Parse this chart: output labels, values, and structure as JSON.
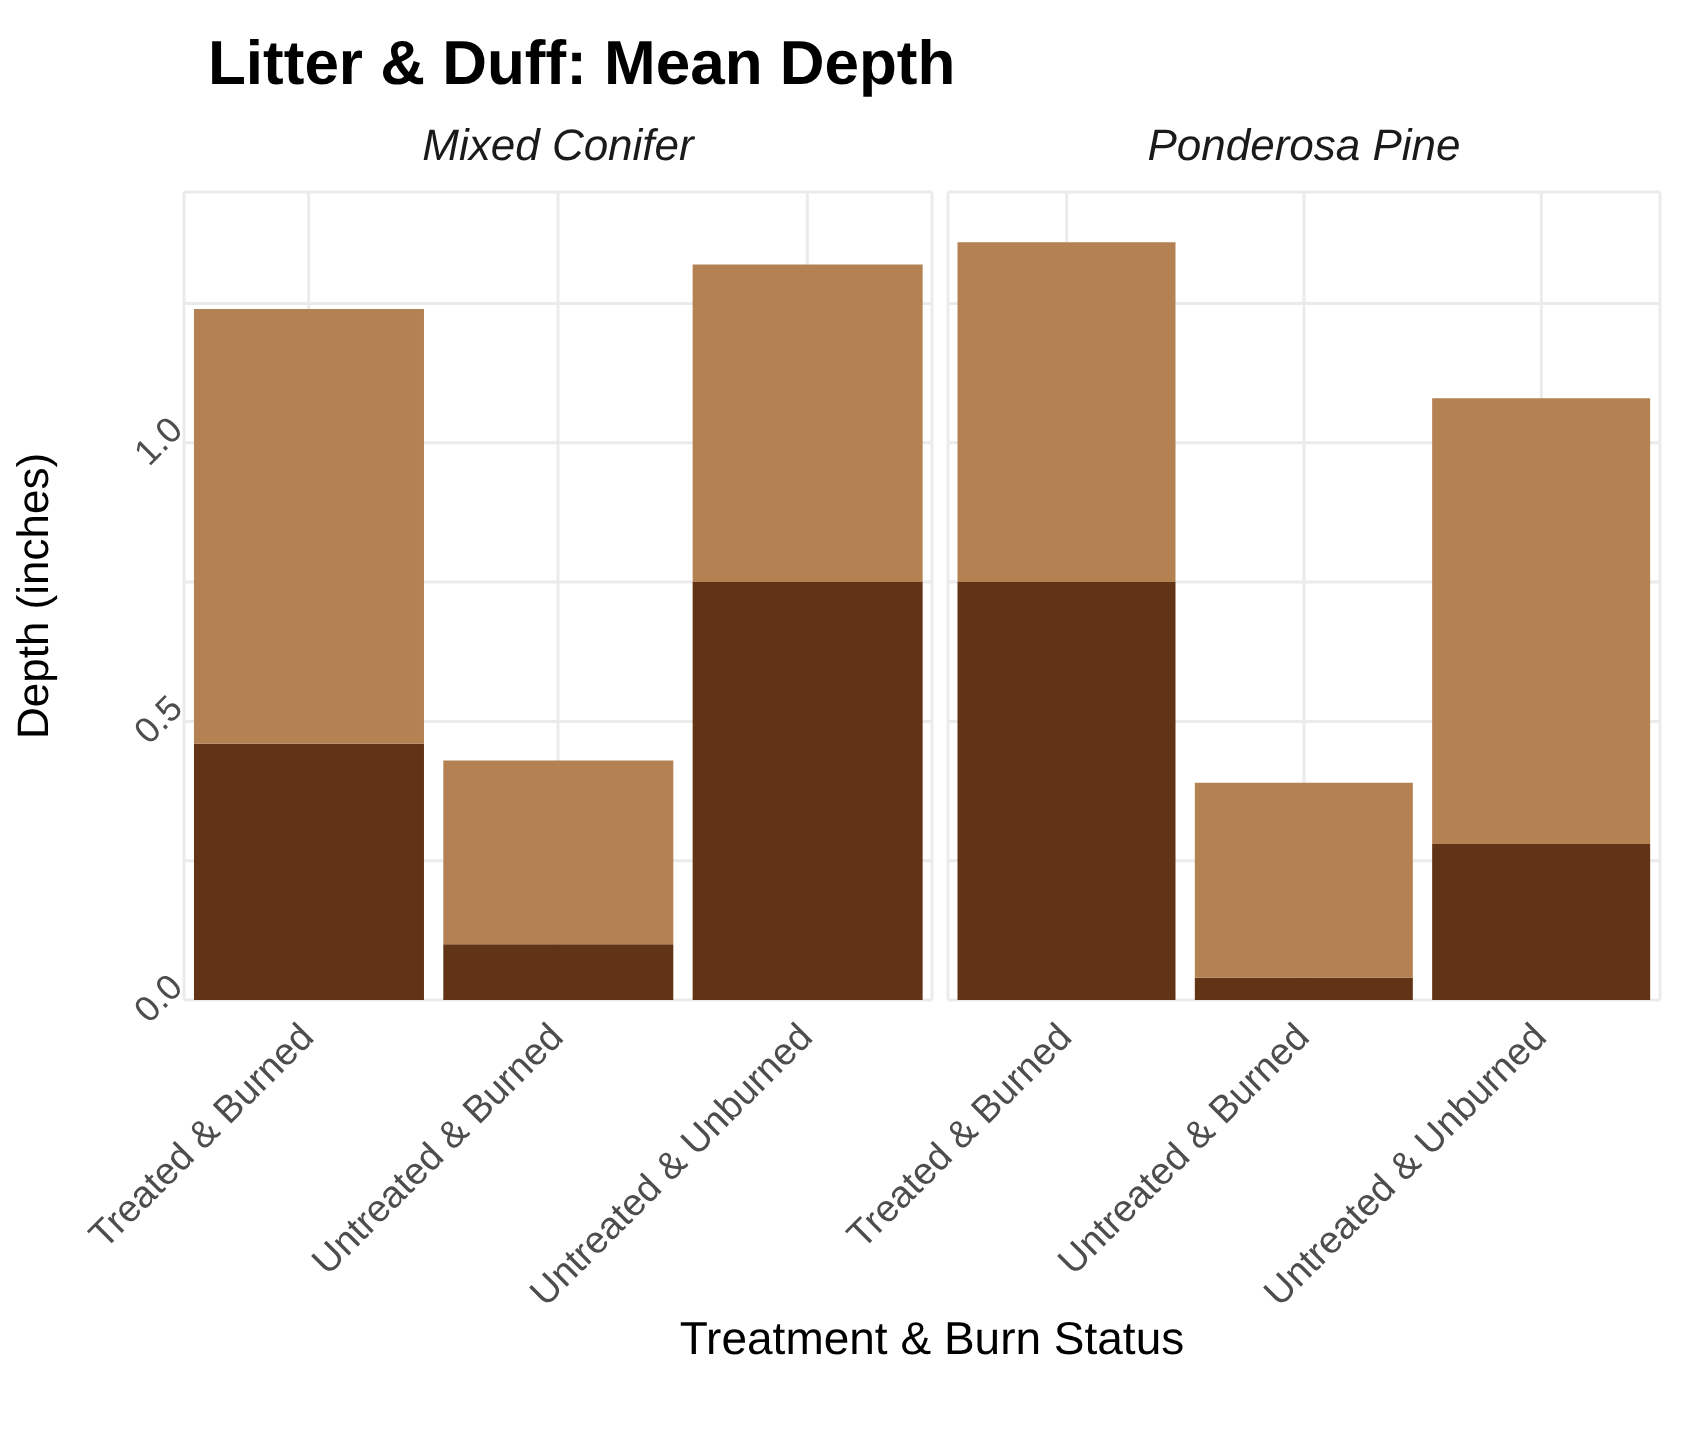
{
  "chart_data": [
    {
      "type": "bar",
      "title": "Litter & Duff: Mean Depth",
      "subtitle": "Mixed Conifer",
      "xlabel": "Treatment & Burn Status",
      "ylabel": "Depth (inches)",
      "categories": [
        "Treated & Burned",
        "Untreated & Burned",
        "Untreated & Unburned"
      ],
      "stacked": true,
      "series": [
        {
          "color": "#603414",
          "values": [
            0.46,
            0.1,
            0.75
          ]
        },
        {
          "color": "#b38152",
          "values": [
            0.78,
            0.33,
            0.57
          ]
        }
      ],
      "ylim": [
        0,
        1.45
      ],
      "yticks": [
        {
          "value": 0,
          "label": "0.0"
        },
        {
          "value": 0.25,
          "label": null
        },
        {
          "value": 0.5,
          "label": "0.5"
        },
        {
          "value": 0.75,
          "label": null
        },
        {
          "value": 1,
          "label": "1.0"
        },
        {
          "value": 1.25,
          "label": null
        }
      ],
      "grid": true
    },
    {
      "type": "bar",
      "subtitle": "Ponderosa Pine",
      "categories": [
        "Treated & Burned",
        "Untreated & Burned",
        "Untreated & Unburned"
      ],
      "stacked": true,
      "series": [
        {
          "color": "#603414",
          "values": [
            0.75,
            0.04,
            0.28
          ]
        },
        {
          "color": "#b38152",
          "values": [
            0.61,
            0.35,
            0.8
          ]
        }
      ],
      "ylim": [
        0,
        1.45
      ],
      "yticks": [
        {
          "value": 0,
          "label": null
        },
        {
          "value": 0.25,
          "label": null
        },
        {
          "value": 0.5,
          "label": null
        },
        {
          "value": 0.75,
          "label": null
        },
        {
          "value": 1,
          "label": null
        },
        {
          "value": 1.25,
          "label": null
        }
      ],
      "grid": true,
      "tick_labels": "x"
    }
  ]
}
